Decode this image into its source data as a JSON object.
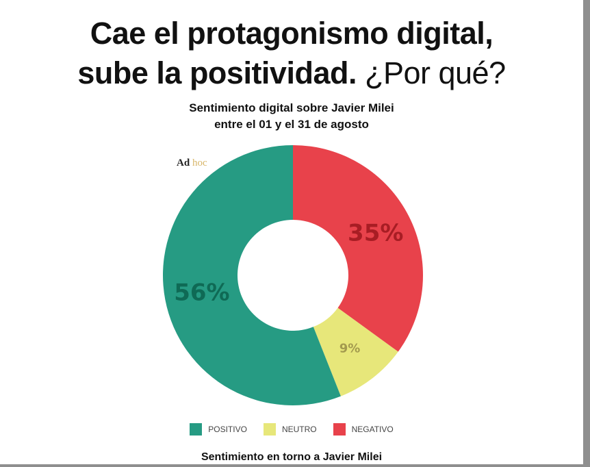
{
  "headline": {
    "line1": "Cae el protagonismo digital,",
    "line2_bold": "sube la positividad.",
    "line2_light": "¿Por qué?"
  },
  "logo": {
    "ad": "Ad",
    "hoc": "hoc"
  },
  "chart_data": {
    "type": "pie",
    "subtype": "donut",
    "title": "Sentimiento digital sobre Javier Milei",
    "subtitle": "entre el 01 y el 31 de agosto",
    "slices": [
      {
        "label": "NEGATIVO",
        "value": 35,
        "value_label": "35%",
        "color": "#e8424b",
        "label_color": "#a81d24"
      },
      {
        "label": "NEUTRO",
        "value": 9,
        "value_label": "9%",
        "color": "#e7e77a",
        "label_color": "#a39a4e"
      },
      {
        "label": "POSITIVO",
        "value": 56,
        "value_label": "56%",
        "color": "#269b83",
        "label_color": "#0f6a55"
      }
    ],
    "start_angle_deg": 0,
    "direction": "clockwise",
    "legend": {
      "placement": "bottom",
      "order": [
        "POSITIVO",
        "NEUTRO",
        "NEGATIVO"
      ]
    }
  },
  "footer": {
    "title": "Sentimiento en torno a Javier Milei"
  }
}
